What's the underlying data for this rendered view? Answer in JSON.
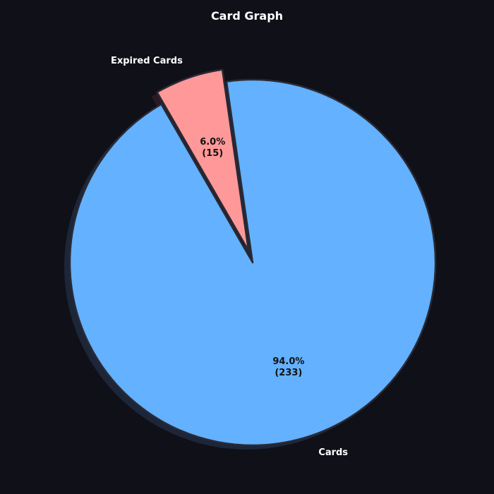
{
  "chart_data": {
    "type": "pie",
    "title": "Card Graph",
    "slices": [
      {
        "label": "Cards",
        "value": 233,
        "percent_label": "94.0%",
        "count_label": "(233)",
        "color": "#63b1ff",
        "explode": false
      },
      {
        "label": "Expired Cards",
        "value": 15,
        "percent_label": "6.0%",
        "count_label": "(15)",
        "color": "#ff9999",
        "explode": true
      }
    ],
    "start_angle_deg": 120,
    "shadow": true
  },
  "colors": {
    "background": "#0f1018",
    "edge": "#2a2a35",
    "shadow": "#1c2638",
    "title_text": "#ffffff",
    "inner_text": "#111111"
  }
}
